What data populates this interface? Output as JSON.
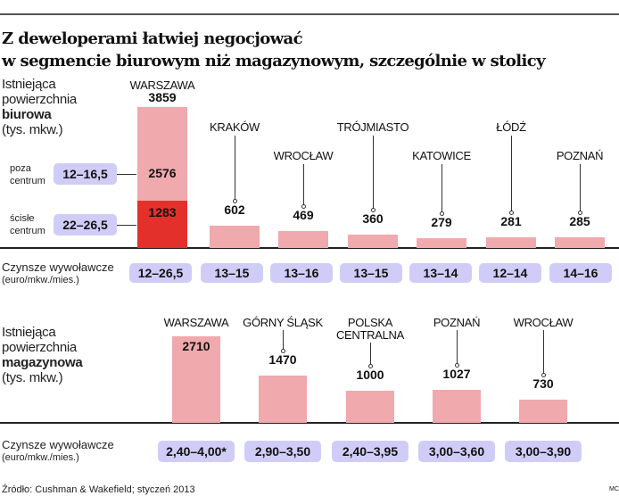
{
  "title_line1": "Z deweloperami łatwiej negocjować",
  "title_line2": "w segmencie biurowym niż magazynowym, szczególnie w stolicy",
  "colors": {
    "bar": "#f0a9ad",
    "core": "#e3302b",
    "pill": "#cfcdf7"
  },
  "chart_data": [
    {
      "type": "bar",
      "title": "Istniejąca powierzchnia biurowa (tys. mkw.)",
      "label_lines": [
        "Istniejąca",
        "powierzchnia",
        "biurowa",
        "(tys. mkw.)"
      ],
      "categories": [
        "WARSZAWA",
        "KRAKÓW",
        "WROCŁAW",
        "TRÓJMIASTO",
        "KATOWICE",
        "ŁÓDŹ",
        "POZNAŃ"
      ],
      "values": [
        3859,
        602,
        469,
        360,
        279,
        281,
        285
      ],
      "warsaw_split": {
        "outside_label": [
          "poza",
          "centrum"
        ],
        "outside_value": 2576,
        "outside_rent": "12–16,5",
        "core_label": [
          "ścisłe",
          "centrum"
        ],
        "core_value": 1283,
        "core_rent": "22–26,5"
      },
      "rent_label": [
        "Czynsze wywoławcze",
        "(euro/mkw./mies.)"
      ],
      "rents": [
        "12–26,5",
        "13–15",
        "13–16",
        "13–15",
        "13–14",
        "12–14",
        "14–16"
      ]
    },
    {
      "type": "bar",
      "title": "Istniejąca powierzchnia magazynowa (tys. mkw.)",
      "label_lines": [
        "Istniejąca",
        "powierzchnia",
        "magazynowa",
        "(tys. mkw.)"
      ],
      "categories": [
        "WARSZAWA",
        "GÓRNY ŚLĄSK",
        "POLSKA CENTRALNA",
        "POZNAŃ",
        "WROCŁAW"
      ],
      "values": [
        2710,
        1470,
        1000,
        1027,
        730
      ],
      "rent_label": [
        "Czynsze wywoławcze",
        "(euro/mkw./mies.)"
      ],
      "rents": [
        "2,40–4,00*",
        "2,90–3,50",
        "2,40–3,95",
        "3,00–3,60",
        "3,00–3,90"
      ]
    }
  ],
  "source": "Źródło: Cushman & Wakefield; styczeń 2013",
  "credit": "MC"
}
